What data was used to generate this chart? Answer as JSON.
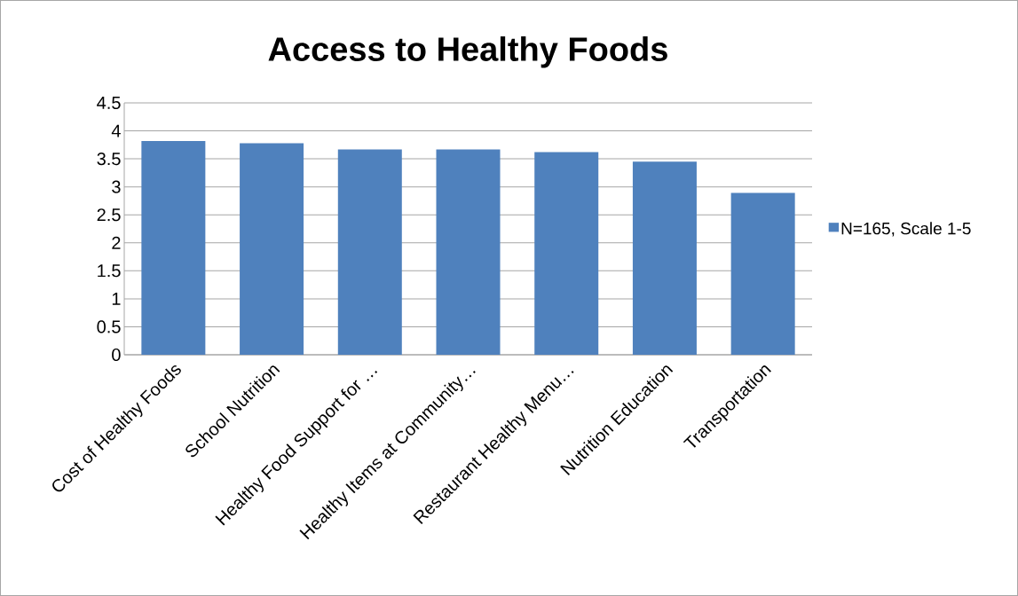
{
  "chart_data": {
    "type": "bar",
    "title": "Access to Healthy Foods",
    "categories": [
      "Cost of Healthy Foods",
      "School Nutrition",
      "Healthy Food Support for …",
      "Healthy Items at Community…",
      "Restaurant Healthy Menu…",
      "Nutrition Education",
      "Transportation"
    ],
    "series": [
      {
        "name": "N=165, Scale 1-5",
        "color": "#4f81bd",
        "values": [
          3.82,
          3.78,
          3.67,
          3.67,
          3.62,
          3.45,
          2.89
        ]
      }
    ],
    "ylim": [
      0,
      4.5
    ],
    "yticks": [
      0,
      0.5,
      1,
      1.5,
      2,
      2.5,
      3,
      3.5,
      4,
      4.5
    ],
    "grid": "y",
    "legend": "right"
  }
}
